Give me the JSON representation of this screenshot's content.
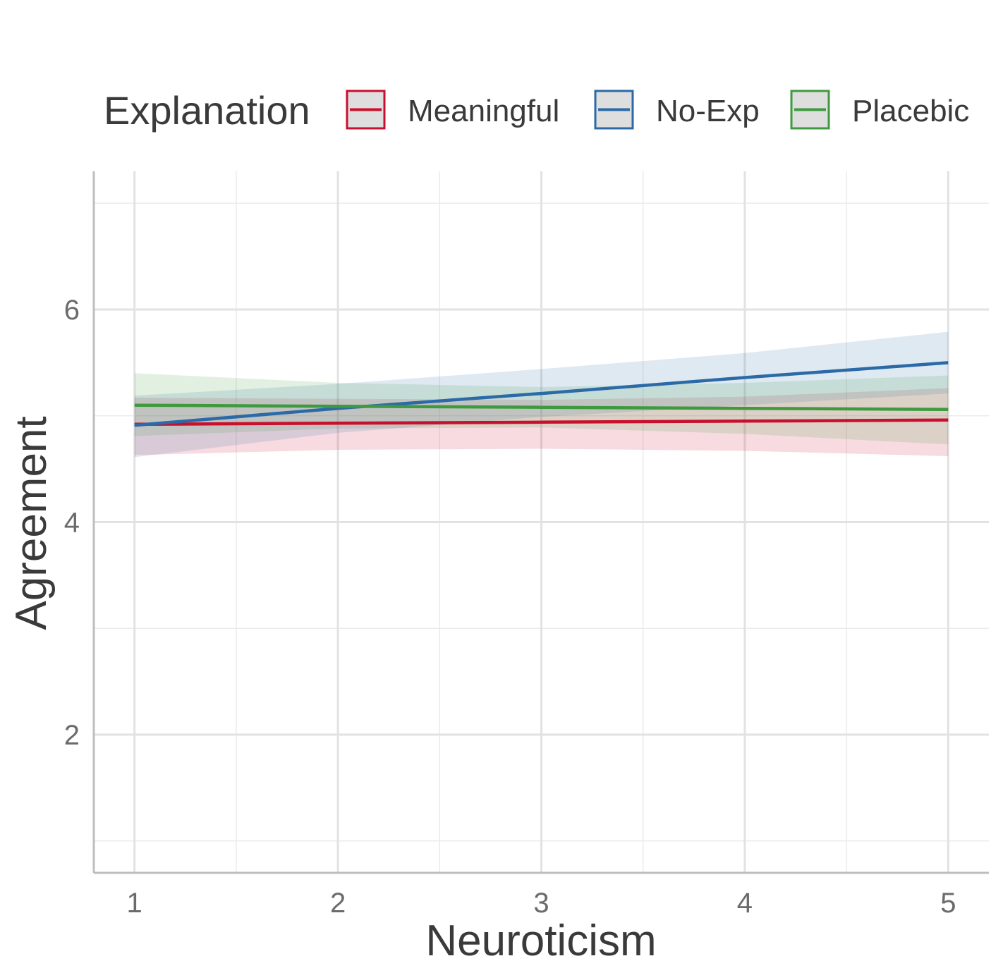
{
  "chart_data": {
    "type": "line",
    "xlabel": "Neuroticism",
    "ylabel": "Agreement",
    "xlim": [
      0.8,
      5.2
    ],
    "ylim": [
      0.7,
      7.3
    ],
    "x_ticks": [
      1,
      2,
      3,
      4,
      5
    ],
    "y_ticks": [
      2,
      4,
      6
    ],
    "grid": true,
    "legend": {
      "title": "Explanation",
      "position": "top"
    },
    "series": [
      {
        "name": "Meaningful",
        "color": "#c8102e",
        "x": [
          1,
          2,
          3,
          4,
          5
        ],
        "y": [
          4.92,
          4.93,
          4.94,
          4.95,
          4.96
        ],
        "ci_lower": [
          4.63,
          4.68,
          4.69,
          4.67,
          4.62
        ],
        "ci_upper": [
          5.17,
          5.16,
          5.15,
          5.18,
          5.26
        ]
      },
      {
        "name": "No-Exp",
        "color": "#2b6aa6",
        "x": [
          1,
          2,
          3,
          4,
          5
        ],
        "y": [
          4.91,
          5.07,
          5.21,
          5.36,
          5.5
        ],
        "ci_lower": [
          4.61,
          4.84,
          4.99,
          5.1,
          5.21
        ],
        "ci_upper": [
          5.19,
          5.3,
          5.44,
          5.59,
          5.79
        ]
      },
      {
        "name": "Placebic",
        "color": "#3f9a3f",
        "x": [
          1,
          2,
          3,
          4,
          5
        ],
        "y": [
          5.1,
          5.09,
          5.08,
          5.07,
          5.06
        ],
        "ci_lower": [
          4.81,
          4.88,
          4.89,
          4.83,
          4.73
        ],
        "ci_upper": [
          5.4,
          5.31,
          5.27,
          5.31,
          5.38
        ]
      }
    ]
  }
}
